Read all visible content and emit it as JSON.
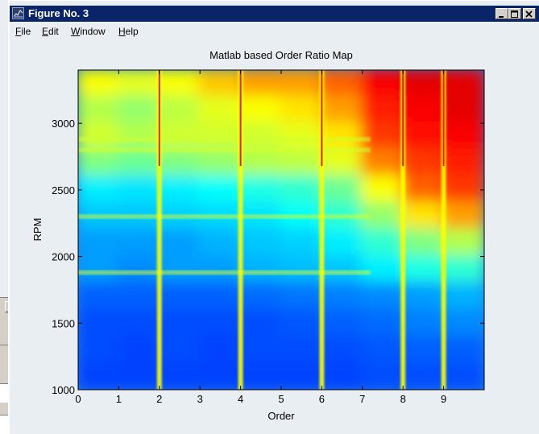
{
  "window": {
    "title": "Figure No. 3",
    "icon": "matlab-figure-icon"
  },
  "menu": [
    {
      "mnemonic": "F",
      "rest": "ile"
    },
    {
      "mnemonic": "E",
      "rest": "dit"
    },
    {
      "mnemonic": "W",
      "rest": "indow"
    },
    {
      "mnemonic": "H",
      "rest": "elp"
    }
  ],
  "background_dialog": {
    "close_icon": "close-icon"
  },
  "chart_data": {
    "type": "heatmap",
    "title": "Matlab based Order Ratio Map",
    "xlabel": "Order",
    "ylabel": "RPM",
    "xlim": [
      0,
      10
    ],
    "ylim": [
      1000,
      3400
    ],
    "x_ticks": [
      0,
      1,
      2,
      3,
      4,
      5,
      6,
      7,
      8,
      9
    ],
    "y_ticks": [
      1000,
      1500,
      2000,
      2500,
      3000
    ],
    "colormap": "jet",
    "grid": false,
    "legend": "none",
    "order_lines": [
      2,
      4,
      6,
      8,
      9
    ],
    "rpm_bands": [
      1880,
      2300,
      2800,
      2880
    ],
    "columns_order": [
      0.5,
      1.5,
      2.5,
      3.5,
      4.5,
      5.5,
      6.5,
      7.5,
      8.5,
      9.5
    ],
    "rows_rpm": [
      3300,
      3100,
      2900,
      2700,
      2500,
      2300,
      2100,
      1900,
      1700,
      1500,
      1300,
      1100
    ],
    "intensity": [
      [
        0.62,
        0.6,
        0.62,
        0.68,
        0.72,
        0.72,
        0.78,
        0.88,
        0.9,
        0.9
      ],
      [
        0.55,
        0.52,
        0.56,
        0.6,
        0.62,
        0.65,
        0.72,
        0.85,
        0.88,
        0.9
      ],
      [
        0.58,
        0.55,
        0.58,
        0.58,
        0.58,
        0.6,
        0.65,
        0.82,
        0.86,
        0.88
      ],
      [
        0.5,
        0.48,
        0.5,
        0.52,
        0.55,
        0.56,
        0.6,
        0.75,
        0.82,
        0.85
      ],
      [
        0.36,
        0.35,
        0.36,
        0.38,
        0.4,
        0.42,
        0.48,
        0.62,
        0.78,
        0.82
      ],
      [
        0.32,
        0.32,
        0.33,
        0.34,
        0.35,
        0.38,
        0.42,
        0.52,
        0.65,
        0.72
      ],
      [
        0.28,
        0.28,
        0.28,
        0.3,
        0.32,
        0.33,
        0.36,
        0.42,
        0.5,
        0.55
      ],
      [
        0.28,
        0.26,
        0.28,
        0.28,
        0.3,
        0.31,
        0.32,
        0.36,
        0.4,
        0.42
      ],
      [
        0.22,
        0.22,
        0.22,
        0.22,
        0.23,
        0.24,
        0.25,
        0.26,
        0.28,
        0.3
      ],
      [
        0.2,
        0.2,
        0.2,
        0.2,
        0.2,
        0.21,
        0.22,
        0.23,
        0.25,
        0.26
      ],
      [
        0.2,
        0.19,
        0.2,
        0.19,
        0.2,
        0.2,
        0.2,
        0.21,
        0.22,
        0.22
      ],
      [
        0.19,
        0.19,
        0.19,
        0.19,
        0.19,
        0.19,
        0.19,
        0.2,
        0.2,
        0.2
      ]
    ]
  }
}
